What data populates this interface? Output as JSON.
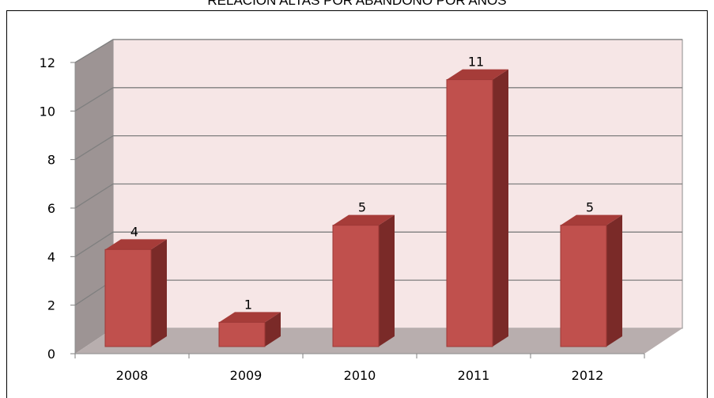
{
  "chart_data": {
    "type": "bar",
    "title": "RELACION ALTAS POR ABANDONO POR AÑOS",
    "categories": [
      "2008",
      "2009",
      "2010",
      "2011",
      "2012"
    ],
    "values": [
      4,
      1,
      5,
      11,
      5
    ],
    "data_labels": [
      "4",
      "1",
      "5",
      "11",
      "5"
    ],
    "ylim": [
      0,
      12
    ],
    "yticks": [
      "0",
      "2",
      "4",
      "6",
      "8",
      "10",
      "12"
    ],
    "xlabel": "",
    "ylabel": "",
    "grid": true,
    "legend": "none",
    "style": "3d-column",
    "colors": {
      "bar_front": "#c0504d",
      "bar_side": "#7a2a28",
      "bar_top": "#a63c39",
      "back_wall": "#f6e6e6",
      "side_wall": "#9d9494",
      "floor": "#b8aeae",
      "gridline": "#7f7f7f"
    }
  }
}
